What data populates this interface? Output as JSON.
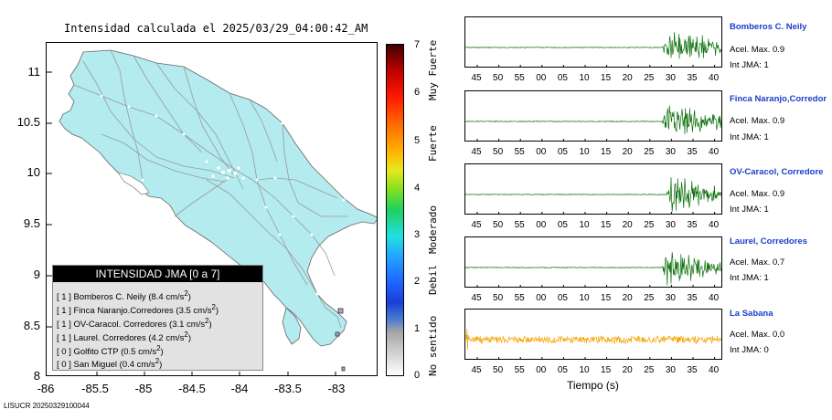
{
  "map": {
    "title": "Intensidad calculada el 2025/03/29_04:00:42_AM",
    "y_ticks": [
      "11",
      "10.5",
      "10",
      "9.5",
      "9",
      "8.5",
      "8"
    ],
    "x_ticks": [
      "-86",
      "-85.5",
      "-85",
      "-84.5",
      "-84",
      "-83.5",
      "-83"
    ],
    "fill_color": "#b3ebee",
    "road_color": "#9a9a9a",
    "legend": {
      "title": "INTENSIDAD JMA [0 a 7]",
      "rows": [
        {
          "int": "[ 1 ]",
          "name": "Bomberos C. Neily",
          "acc": "(8.4 cm/s",
          "exp": "2",
          ")": ")"
        },
        {
          "int": "[ 1 ]",
          "name": "Finca Naranjo.Corredores",
          "acc": "(3.5 cm/s",
          "exp": "2",
          ")": ")"
        },
        {
          "int": "[ 1 ]",
          "name": "OV-Caracol. Corredores",
          "acc": "(3.1 cm/s",
          "exp": "2",
          ")": ")"
        },
        {
          "int": "[ 1 ]",
          "name": "Laurel. Corredores",
          "acc": "(4.2 cm/s",
          "exp": "2",
          ")": ")"
        },
        {
          "int": "[ 0 ]",
          "name": "Golfito CTP",
          "acc": "(0.5 cm/s",
          "exp": "2",
          ")": ")"
        },
        {
          "int": "[ 0 ]",
          "name": "San Miguel",
          "acc": "(0.4 cm/s",
          "exp": "2",
          ")": ")"
        }
      ]
    }
  },
  "scale": {
    "ticks": [
      "7",
      "6",
      "5",
      "4",
      "3",
      "2",
      "1",
      "0"
    ],
    "labels": [
      "Muy Fuerte",
      "Fuerte",
      "Moderado",
      "Debil",
      "No sentido"
    ]
  },
  "stations": [
    {
      "name": "Bomberos C. Neily",
      "acc": "Acel. Max. 0.9",
      "int": "Int JMA: 1",
      "color": "#0a6e0a",
      "onset": 28
    },
    {
      "name": "Finca Naranjo,Corredor",
      "acc": "Acel. Max. 0.9",
      "int": "Int JMA: 1",
      "color": "#0a6e0a",
      "onset": 28
    },
    {
      "name": "OV-Caracol, Corredore",
      "acc": "Acel. Max. 0.9",
      "int": "Int JMA: 1",
      "color": "#0a6e0a",
      "onset": 29
    },
    {
      "name": "Laurel, Corredores",
      "acc": "Acel. Max. 0.7",
      "int": "Int JMA: 1",
      "color": "#0a6e0a",
      "onset": 28
    },
    {
      "name": "La Sabana",
      "acc": "Acel. Max. 0.0",
      "int": "Int JMA: 0",
      "color": "#f5a300",
      "onset": -1
    }
  ],
  "time_ticks": [
    "45",
    "50",
    "55",
    "00",
    "05",
    "10",
    "15",
    "20",
    "25",
    "30",
    "35",
    "40"
  ],
  "time_label": "Tiempo (s)",
  "footer_id": "LISUCR 20250329100044"
}
